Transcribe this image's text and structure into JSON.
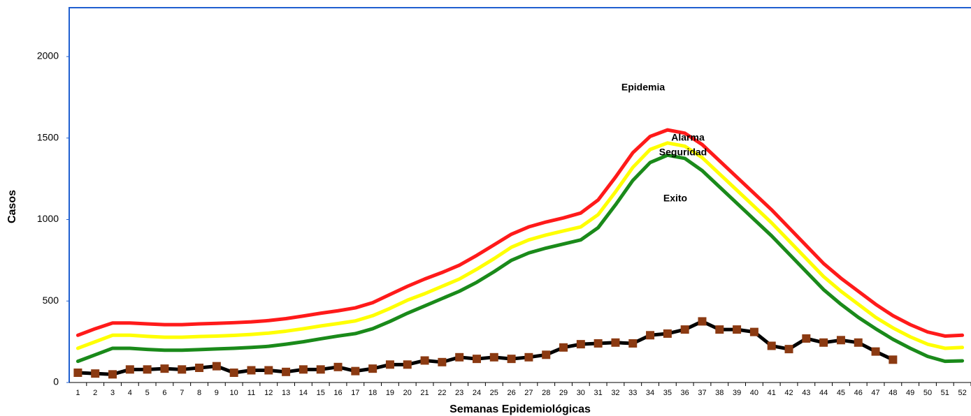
{
  "chart_data": {
    "type": "line",
    "xlabel": "Semanas Epidemiológicas",
    "ylabel": "Casos",
    "annotations": [
      "Epidemia",
      "Alarma",
      "Seguridad",
      "Exito"
    ],
    "categories": [
      "1",
      "2",
      "3",
      "4",
      "5",
      "6",
      "7",
      "8",
      "9",
      "10",
      "11",
      "12",
      "13",
      "14",
      "15",
      "16",
      "17",
      "18",
      "19",
      "20",
      "21",
      "22",
      "23",
      "24",
      "25",
      "26",
      "27",
      "28",
      "29",
      "30",
      "31",
      "32",
      "33",
      "34",
      "35",
      "36",
      "37",
      "38",
      "39",
      "40",
      "41",
      "42",
      "43",
      "44",
      "45",
      "46",
      "47",
      "48",
      "49",
      "50",
      "51",
      "52"
    ],
    "ylim": [
      0,
      2300
    ],
    "yticks": [
      0,
      500,
      1000,
      1500,
      2000
    ],
    "grid": false,
    "series": [
      {
        "color": "#ff1a1a",
        "values": [
          290,
          330,
          365,
          365,
          360,
          355,
          355,
          360,
          363,
          367,
          372,
          380,
          392,
          408,
          425,
          440,
          458,
          490,
          540,
          590,
          635,
          675,
          720,
          780,
          845,
          910,
          955,
          985,
          1010,
          1040,
          1120,
          1260,
          1410,
          1510,
          1550,
          1530,
          1460,
          1360,
          1260,
          1160,
          1060,
          950,
          840,
          730,
          640,
          560,
          480,
          410,
          355,
          310,
          285,
          290
        ]
      },
      {
        "color": "#ffff00",
        "values": [
          210,
          250,
          290,
          290,
          283,
          278,
          278,
          282,
          285,
          289,
          295,
          303,
          315,
          330,
          347,
          362,
          378,
          410,
          455,
          505,
          545,
          590,
          635,
          695,
          760,
          830,
          875,
          905,
          930,
          955,
          1030,
          1170,
          1320,
          1430,
          1470,
          1450,
          1380,
          1280,
          1180,
          1080,
          980,
          870,
          760,
          650,
          560,
          480,
          400,
          335,
          280,
          235,
          210,
          215
        ]
      },
      {
        "color": "#1a8a1a",
        "values": [
          130,
          170,
          210,
          210,
          203,
          198,
          198,
          202,
          206,
          210,
          215,
          222,
          235,
          250,
          268,
          285,
          300,
          330,
          375,
          425,
          470,
          515,
          560,
          615,
          680,
          750,
          795,
          825,
          850,
          875,
          950,
          1090,
          1240,
          1350,
          1395,
          1375,
          1300,
          1200,
          1100,
          1000,
          900,
          790,
          680,
          570,
          480,
          400,
          330,
          265,
          210,
          160,
          130,
          133
        ]
      },
      {
        "color": "#000000",
        "marker_color": "#8b3a12",
        "values": [
          60,
          55,
          50,
          80,
          80,
          85,
          80,
          90,
          100,
          60,
          75,
          75,
          65,
          80,
          80,
          95,
          70,
          85,
          110,
          110,
          135,
          125,
          155,
          145,
          155,
          145,
          155,
          170,
          215,
          235,
          240,
          245,
          240,
          290,
          300,
          325,
          375,
          325,
          325,
          310,
          225,
          205,
          270,
          245,
          260,
          245,
          190,
          140,
          null,
          null,
          null,
          null
        ]
      }
    ]
  }
}
